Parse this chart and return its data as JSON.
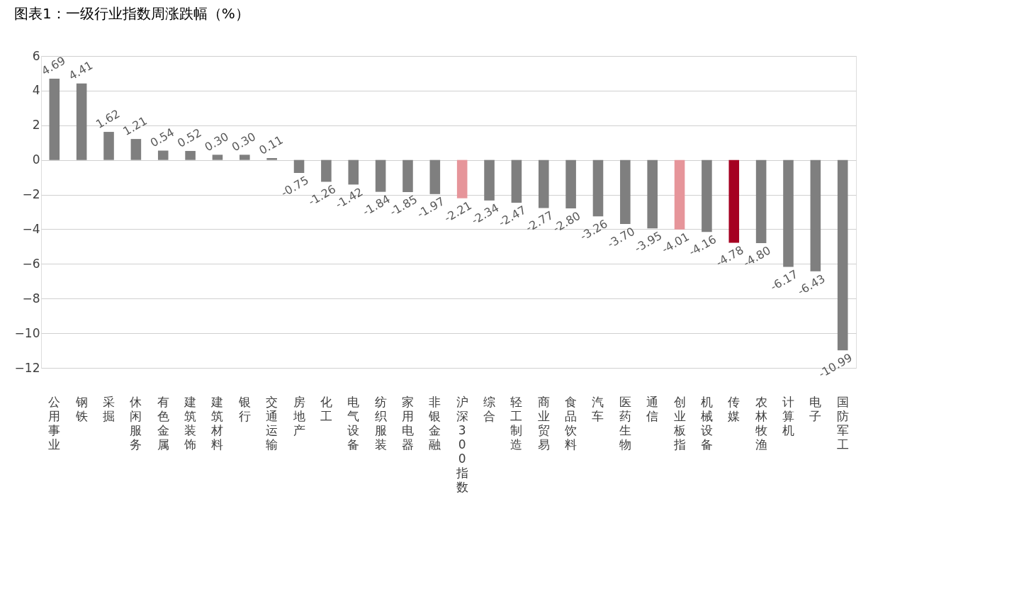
{
  "chart_data": {
    "type": "bar",
    "title": "图表1：一级行业指数周涨跌幅（%）",
    "categories": [
      "公用事业",
      "钢铁",
      "采掘",
      "休闲服务",
      "有色金属",
      "建筑装饰",
      "建筑材料",
      "银行",
      "交通运输",
      "房地产",
      "化工",
      "电气设备",
      "纺织服装",
      "家用电器",
      "非银金融",
      "沪深300指数",
      "综合",
      "轻工制造",
      "商业贸易",
      "食品饮料",
      "汽车",
      "医药生物",
      "通信",
      "创业板指",
      "机械设备",
      "传媒",
      "农林牧渔",
      "计算机",
      "电子",
      "国防军工"
    ],
    "values": [
      4.69,
      4.41,
      1.62,
      1.21,
      0.54,
      0.52,
      0.3,
      0.3,
      0.11,
      -0.75,
      -1.26,
      -1.42,
      -1.84,
      -1.85,
      -1.97,
      -2.21,
      -2.34,
      -2.47,
      -2.77,
      -2.8,
      -3.26,
      -3.7,
      -3.95,
      -4.01,
      -4.16,
      -4.78,
      -4.8,
      -6.17,
      -6.43,
      -10.99
    ],
    "colors": [
      "#7f7f7f",
      "#7f7f7f",
      "#7f7f7f",
      "#7f7f7f",
      "#7f7f7f",
      "#7f7f7f",
      "#7f7f7f",
      "#7f7f7f",
      "#7f7f7f",
      "#7f7f7f",
      "#7f7f7f",
      "#7f7f7f",
      "#7f7f7f",
      "#7f7f7f",
      "#7f7f7f",
      "#e6959a",
      "#7f7f7f",
      "#7f7f7f",
      "#7f7f7f",
      "#7f7f7f",
      "#7f7f7f",
      "#7f7f7f",
      "#7f7f7f",
      "#e6959a",
      "#7f7f7f",
      "#a50021",
      "#7f7f7f",
      "#7f7f7f",
      "#7f7f7f",
      "#7f7f7f"
    ],
    "ylim": [
      -12,
      6
    ],
    "yticks": [
      -12,
      -10,
      -8,
      -6,
      -4,
      -2,
      0,
      2,
      4,
      6
    ],
    "value_labels": [
      "4.69",
      "4.41",
      "1.62",
      "1.21",
      "0.54",
      "0.52",
      "0.30",
      "0.30",
      "0.11",
      "-0.75",
      "-1.26",
      "-1.42",
      "-1.84",
      "-1.85",
      "-1.97",
      "-2.21",
      "-2.34",
      "-2.47",
      "-2.77",
      "-2.80",
      "-3.26",
      "-3.70",
      "-3.95",
      "-4.01",
      "-4.16",
      "-4.78",
      "-4.80",
      "-6.17",
      "-6.43",
      "-10.99"
    ],
    "grid": "y"
  }
}
